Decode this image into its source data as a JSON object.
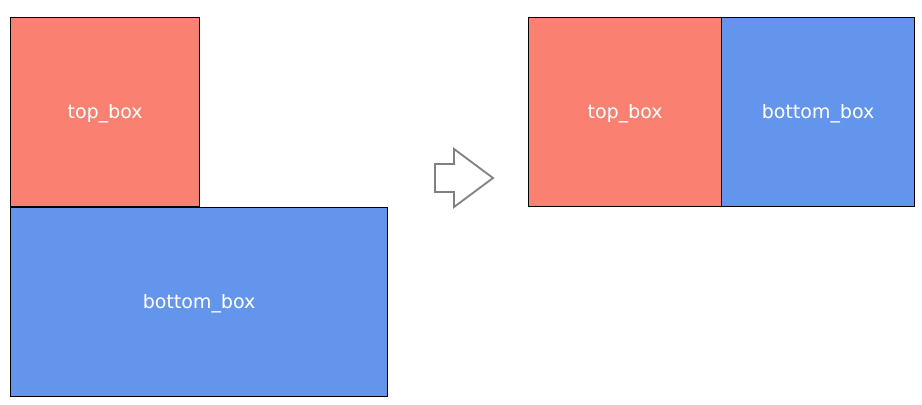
{
  "colors": {
    "top_box": "#fa8072",
    "bottom_box": "#6495ed",
    "arrow_stroke": "#808080",
    "border": "#000000"
  },
  "before": {
    "top_label": "top_box",
    "bottom_label": "bottom_box"
  },
  "after": {
    "top_label": "top_box",
    "bottom_label": "bottom_box"
  },
  "arrow_icon": "right-arrow-icon"
}
